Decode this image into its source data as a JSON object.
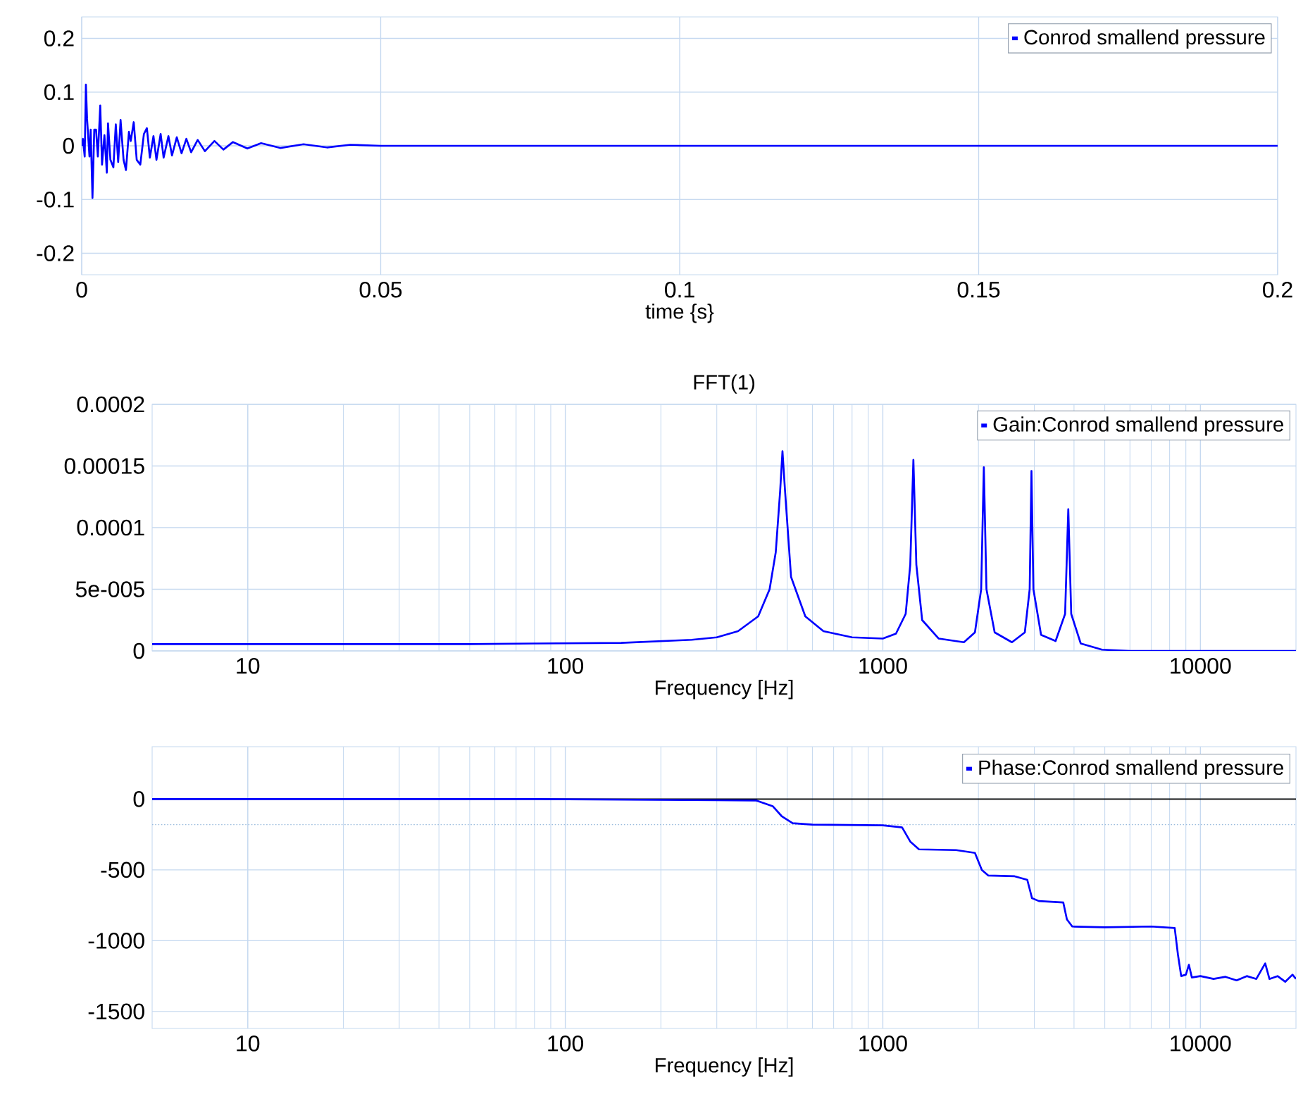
{
  "chart_data": [
    {
      "type": "line",
      "xlabel": "time {s}",
      "xlim": [
        0,
        0.2
      ],
      "ylim": [
        -0.24,
        0.24
      ],
      "xticks": [
        0,
        0.05,
        0.1,
        0.15,
        0.2
      ],
      "yticks": [
        -0.2,
        -0.1,
        0,
        0.1,
        0.2
      ],
      "grid": true,
      "legend": "top right",
      "series": [
        {
          "name": "Conrod smallend pressure",
          "color": "#0000ff",
          "x": [
            0,
            0.0002,
            0.0005,
            0.0007,
            0.0009,
            0.0013,
            0.0015,
            0.0018,
            0.0021,
            0.0024,
            0.0027,
            0.0031,
            0.0034,
            0.0038,
            0.0042,
            0.0044,
            0.0048,
            0.0053,
            0.0057,
            0.0061,
            0.0065,
            0.007,
            0.0074,
            0.0079,
            0.0082,
            0.0087,
            0.0092,
            0.0098,
            0.0104,
            0.0109,
            0.0114,
            0.012,
            0.0125,
            0.0132,
            0.0137,
            0.0145,
            0.0151,
            0.0159,
            0.0167,
            0.0175,
            0.0183,
            0.0194,
            0.0206,
            0.0222,
            0.0237,
            0.0253,
            0.0277,
            0.03,
            0.0332,
            0.0371,
            0.041,
            0.0449,
            0.05,
            0.1,
            0.15,
            0.2
          ],
          "values": [
            0,
            0.013,
            -0.02,
            0.114,
            0.05,
            -0.02,
            0.03,
            -0.097,
            0.03,
            0.03,
            -0.02,
            0.075,
            -0.035,
            0.02,
            -0.05,
            0.042,
            -0.026,
            -0.04,
            0.04,
            -0.03,
            0.048,
            -0.026,
            -0.045,
            0.026,
            0.009,
            0.044,
            -0.026,
            -0.035,
            0.022,
            0.033,
            -0.022,
            0.018,
            -0.026,
            0.022,
            -0.022,
            0.018,
            -0.018,
            0.016,
            -0.014,
            0.013,
            -0.012,
            0.011,
            -0.01,
            0.009,
            -0.007,
            0.007,
            -0.005,
            0.005,
            -0.004,
            0.003,
            -0.003,
            0.002,
            0,
            0,
            0,
            0
          ]
        }
      ]
    },
    {
      "type": "line",
      "title": "FFT(1)",
      "xlabel": "Frequency [Hz]",
      "log": "x",
      "xlim": [
        5,
        20000
      ],
      "ylim": [
        0,
        0.0002
      ],
      "xticks": [
        10,
        100,
        1000,
        10000
      ],
      "yticks": [
        0,
        {
          "value": 5e-05,
          "label": "5e-005"
        },
        0.0001,
        0.00015,
        0.0002
      ],
      "grid": true,
      "legend": "top right",
      "series": [
        {
          "name": "Gain:Conrod smallend pressure",
          "color": "#0000ff",
          "x": [
            5,
            50,
            80,
            150,
            250,
            300,
            350,
            405,
            440,
            460,
            475,
            483,
            492,
            514,
            570,
            650,
            800,
            1000,
            1100,
            1180,
            1220,
            1248,
            1275,
            1330,
            1500,
            1800,
            1950,
            2040,
            2080,
            2120,
            2250,
            2550,
            2800,
            2900,
            2938,
            2980,
            3150,
            3500,
            3750,
            3838,
            3920,
            4200,
            4900,
            6000,
            20000
          ],
          "values": [
            5.5e-06,
            5.5e-06,
            6e-06,
            6.5e-06,
            9e-06,
            1.1e-05,
            1.6e-05,
            2.8e-05,
            5e-05,
            8e-05,
            0.00013,
            0.000162,
            0.00013,
            6e-05,
            2.8e-05,
            1.6e-05,
            1.1e-05,
            1e-05,
            1.4e-05,
            3e-05,
            7e-05,
            0.000155,
            7e-05,
            2.5e-05,
            1e-05,
            7e-06,
            1.5e-05,
            5e-05,
            0.000149,
            5e-05,
            1.5e-05,
            7e-06,
            1.5e-05,
            5e-05,
            0.000146,
            5e-05,
            1.3e-05,
            8e-06,
            3e-05,
            0.000115,
            3e-05,
            6e-06,
            1e-06,
            0,
            0
          ]
        }
      ]
    },
    {
      "type": "line",
      "xlabel": "Frequency [Hz]",
      "log": "x",
      "xlim": [
        5,
        20000
      ],
      "ylim": [
        -1620,
        370
      ],
      "xticks": [
        10,
        100,
        1000,
        10000
      ],
      "yticks": [
        -1500,
        -1000,
        -500,
        0
      ],
      "grid": true,
      "legend": "top right",
      "ref_lines": [
        {
          "axis": "y",
          "value": 0,
          "color": "#000000",
          "line_style": "solid"
        },
        {
          "axis": "y",
          "value": -180,
          "color": "#99bbdd",
          "line_style": "dotted"
        }
      ],
      "series": [
        {
          "name": "Phase:Conrod smallend pressure",
          "color": "#0000ff",
          "x": [
            5,
            80,
            400,
            450,
            480,
            520,
            600,
            1000,
            1150,
            1220,
            1300,
            1700,
            1950,
            2050,
            2150,
            2600,
            2850,
            2950,
            3100,
            3700,
            3800,
            3950,
            5000,
            7000,
            8300,
            8500,
            8700,
            9000,
            9200,
            9400,
            10000,
            11000,
            12000,
            13000,
            14000,
            15000,
            16000,
            16500,
            17500,
            18500,
            19500,
            20000
          ],
          "values": [
            0,
            0,
            -10,
            -50,
            -120,
            -170,
            -180,
            -185,
            -200,
            -300,
            -355,
            -360,
            -380,
            -500,
            -540,
            -545,
            -570,
            -700,
            -720,
            -730,
            -850,
            -900,
            -905,
            -900,
            -910,
            -1100,
            -1250,
            -1240,
            -1170,
            -1260,
            -1250,
            -1270,
            -1255,
            -1280,
            -1250,
            -1270,
            -1160,
            -1270,
            -1250,
            -1290,
            -1240,
            -1270
          ]
        }
      ]
    }
  ]
}
